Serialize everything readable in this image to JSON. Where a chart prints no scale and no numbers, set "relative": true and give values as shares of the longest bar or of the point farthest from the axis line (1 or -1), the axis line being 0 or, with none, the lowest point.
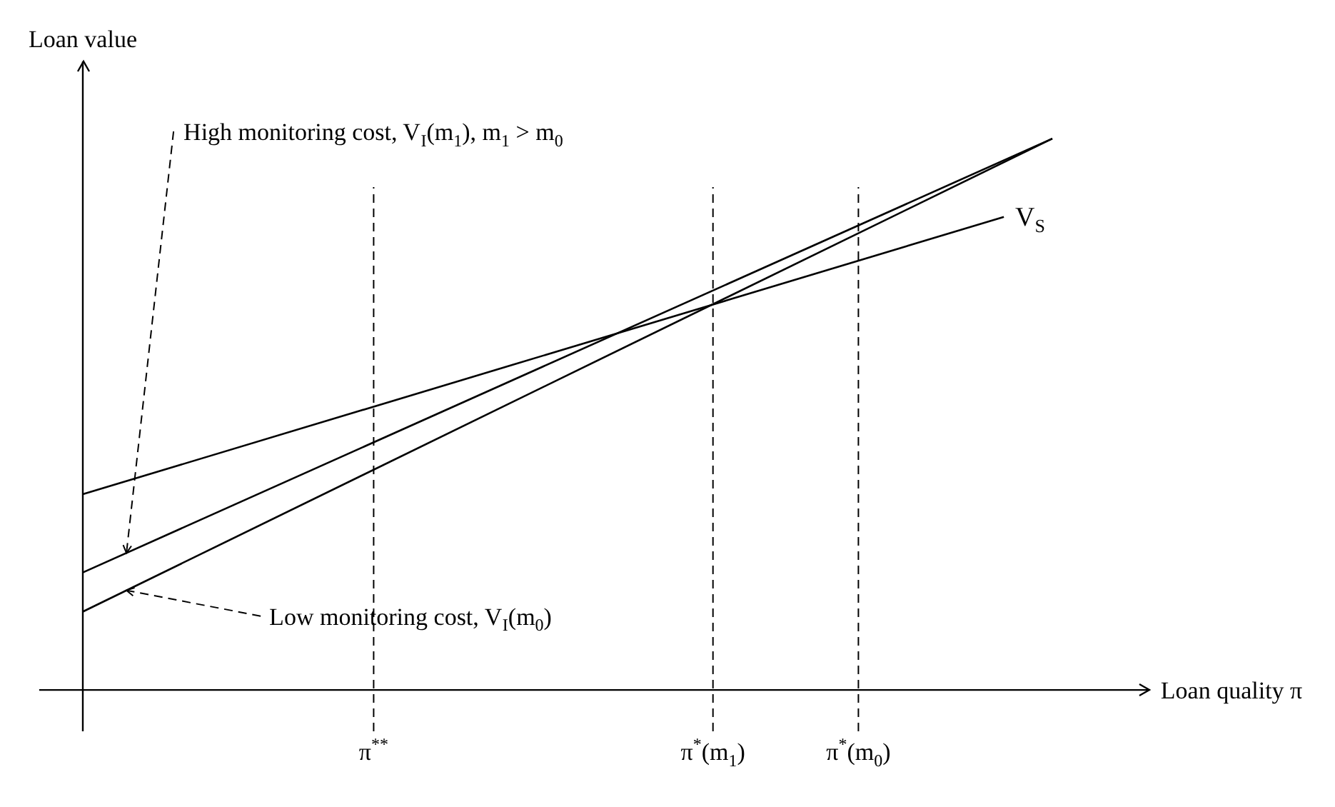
{
  "chart_data": {
    "type": "line",
    "relative": true,
    "xlabel": "Loan quality π",
    "ylabel": "Loan value",
    "grid": false,
    "legend": false,
    "marker": "none",
    "line_style": "solid",
    "categories": [
      null,
      null,
      null,
      null,
      null,
      null,
      "π$^{**}$",
      null,
      null,
      null,
      null,
      null,
      null,
      "π$^{*}$(m$_{1}$)",
      null,
      null,
      "π$^{*}$(m$_{0}$)",
      null,
      null,
      null,
      null
    ],
    "series": [
      {
        "name": "V$_{S}$",
        "color": "#000000",
        "values": [
          0.355,
          null,
          null,
          null,
          null,
          null,
          null,
          null,
          null,
          null,
          null,
          null,
          null,
          null,
          null,
          null,
          null,
          null,
          null,
          0.858,
          null
        ]
      },
      {
        "color": "#000000",
        "values": [
          0.213,
          null,
          null,
          null,
          null,
          null,
          null,
          null,
          null,
          null,
          null,
          null,
          null,
          null,
          null,
          null,
          null,
          null,
          null,
          null,
          1
        ]
      },
      {
        "color": "#000000",
        "values": [
          0.142,
          null,
          null,
          null,
          null,
          null,
          null,
          null,
          null,
          null,
          null,
          null,
          null,
          null,
          null,
          null,
          null,
          null,
          null,
          null,
          1
        ]
      }
    ],
    "ref_lines": [
      {
        "axis": "x",
        "value": "π$^{**}$",
        "line_style": "dashed"
      },
      {
        "axis": "x",
        "value": "π$^{*}$(m$_{1}$)",
        "line_style": "dashed"
      },
      {
        "axis": "x",
        "value": "π$^{*}$(m$_{0}$)",
        "line_style": "dashed"
      }
    ],
    "annotations": [
      "High monitoring cost, V$_{I}$(m$_{1}$), m$_{1}$ > m$_{0}$",
      "Low monitoring cost, V$_{I}$(m$_{0}$)"
    ]
  }
}
